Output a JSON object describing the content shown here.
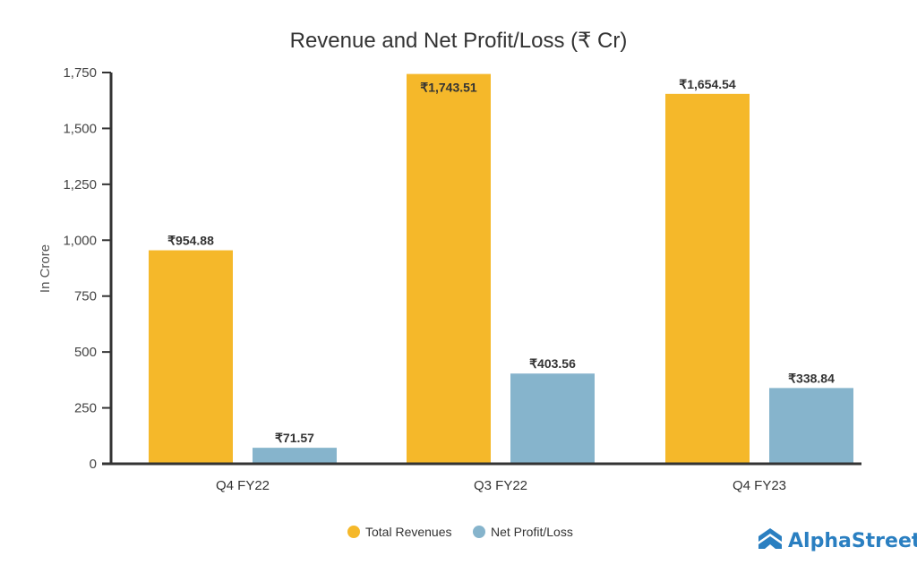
{
  "chart_data": {
    "type": "bar",
    "title": "Revenue and Net Profit/Loss (₹ Cr)",
    "xlabel": "",
    "ylabel": "In Crore",
    "ylim": [
      0,
      1750
    ],
    "yticks": [
      0,
      250,
      500,
      750,
      1000,
      1250,
      1500,
      1750
    ],
    "ytick_labels": [
      "0",
      "250",
      "500",
      "750",
      "1,000",
      "1,250",
      "1,500",
      "1,750"
    ],
    "grid": false,
    "categories": [
      "Q4 FY22",
      "Q3 FY22",
      "Q4 FY23"
    ],
    "series": [
      {
        "name": "Total Revenues",
        "color": "#f5b82a",
        "values": [
          954.88,
          1743.51,
          1654.54
        ],
        "labels": [
          "₹954.88",
          "₹1,743.51",
          "₹1,654.54"
        ]
      },
      {
        "name": "Net Profit/Loss",
        "color": "#86b4cc",
        "values": [
          71.57,
          403.56,
          338.84
        ],
        "labels": [
          "₹71.57",
          "₹403.56",
          "₹338.84"
        ]
      }
    ],
    "legend": {
      "position": "bottom-center",
      "items": [
        "Total Revenues",
        "Net Profit/Loss"
      ]
    }
  },
  "brand": {
    "name": "AlphaStreet",
    "icon": "chevron-up-double-icon",
    "color": "#2a7fc1"
  },
  "colors": {
    "axis": "#333333"
  }
}
